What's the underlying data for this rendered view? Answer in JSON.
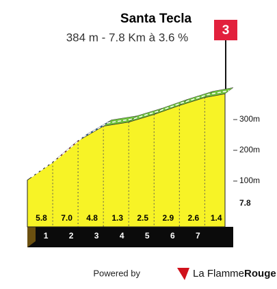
{
  "chart_data": {
    "type": "climb-profile",
    "title": "Santa Tecla",
    "subtitle": "384 m - 7.8 Km à 3.6 %",
    "climb_number": "3",
    "x": [
      0,
      1,
      2,
      3,
      4,
      5,
      6,
      7,
      7.8
    ],
    "elevation": [
      103,
      161,
      231,
      279,
      292,
      317,
      346,
      372,
      384
    ],
    "gradients": [
      5.8,
      7.0,
      4.8,
      1.3,
      2.5,
      2.9,
      2.6,
      1.4
    ],
    "gradient_labels": [
      "5.8",
      "7.0",
      "4.8",
      "1.3",
      "2.5",
      "2.9",
      "2.6",
      "1.4"
    ],
    "segment_colors": [
      "#2a6aa6",
      "#e2213d",
      "#2a6aa6",
      "#6fc23d",
      "#6fc23d",
      "#6fc23d",
      "#6fc23d",
      "#6fc23d"
    ],
    "xlim": [
      0,
      7.8
    ],
    "xticks": [
      1,
      2,
      3,
      4,
      5,
      6,
      7,
      7.8
    ],
    "ylim": [
      0,
      400
    ],
    "yticks": [
      {
        "value": 100,
        "label": "100m"
      },
      {
        "value": 200,
        "label": "200m"
      },
      {
        "value": 300,
        "label": "300m"
      }
    ],
    "face_color": "#f7f326",
    "footer": {
      "powered": "Powered by",
      "brand_a": "La Flamme",
      "brand_b": "Rouge"
    }
  }
}
